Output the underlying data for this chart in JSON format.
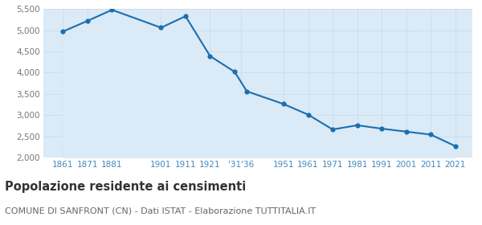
{
  "years": [
    1861,
    1871,
    1881,
    1901,
    1911,
    1921,
    1931,
    1936,
    1951,
    1961,
    1971,
    1981,
    1991,
    2001,
    2011,
    2021
  ],
  "population": [
    4970,
    5220,
    5480,
    5060,
    5330,
    4390,
    4020,
    3560,
    3260,
    3010,
    2660,
    2760,
    2680,
    2610,
    2540,
    2270
  ],
  "x_tick_positions": [
    1861,
    1871,
    1881,
    1901,
    1911,
    1921,
    1933.5,
    1951,
    1961,
    1971,
    1981,
    1991,
    2001,
    2011,
    2021
  ],
  "x_tick_labels": [
    "1861",
    "1871",
    "1881",
    "1901",
    "1911",
    "1921",
    "'31'36",
    "1951",
    "1961",
    "1971",
    "1981",
    "1991",
    "2001",
    "2011",
    "2021"
  ],
  "ylim": [
    2000,
    5500
  ],
  "yticks": [
    2000,
    2500,
    3000,
    3500,
    4000,
    4500,
    5000,
    5500
  ],
  "xlim_left": 1853,
  "xlim_right": 2028,
  "line_color": "#1b6faf",
  "fill_color": "#daeaf7",
  "marker_color": "#1b6faf",
  "grid_color": "#c8d8e8",
  "background_color": "#ffffff",
  "title": "Popolazione residente ai censimenti",
  "subtitle": "COMUNE DI SANFRONT (CN) - Dati ISTAT - Elaborazione TUTTITALIA.IT",
  "title_fontsize": 10.5,
  "subtitle_fontsize": 8,
  "tick_label_color": "#4488bb",
  "ytick_label_color": "#777777"
}
